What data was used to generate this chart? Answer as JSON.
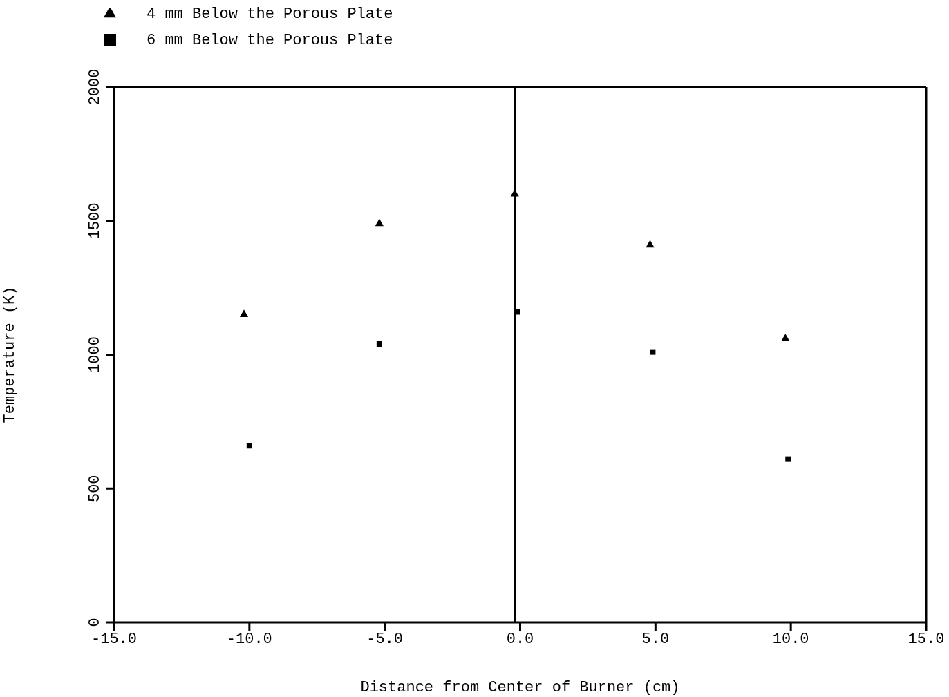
{
  "chart_data": {
    "type": "scatter",
    "xlabel": "Distance from Center of Burner  (cm)",
    "ylabel": "Temperature (K)",
    "xlim": [
      -15,
      15
    ],
    "xticks": [
      {
        "value": -15,
        "label": "-15.0"
      },
      {
        "value": -10,
        "label": "-10.0"
      },
      {
        "value": -5,
        "label": "-5.0"
      },
      {
        "value": 0,
        "label": "0.0"
      },
      {
        "value": 5,
        "label": "5.0"
      },
      {
        "value": 10,
        "label": "10.0"
      },
      {
        "value": 15,
        "label": "15.0"
      }
    ],
    "ylim": [
      0,
      2000
    ],
    "yticks": [
      0,
      500,
      1000,
      1500,
      2000
    ],
    "grid": false,
    "legend": "top left",
    "ref_lines": [
      {
        "axis": "x",
        "value": -0.2,
        "color": "#000000"
      }
    ],
    "series": [
      {
        "name": "4 mm Below the Porous Plate",
        "color": "#000000",
        "marker": "triangle",
        "x": [
          -10.2,
          -5.2,
          -0.2,
          4.8,
          9.8
        ],
        "values": [
          1150,
          1490,
          1600,
          1410,
          1060
        ]
      },
      {
        "name": "6 mm Below the Porous Plate",
        "color": "#000000",
        "marker": "square",
        "x": [
          -10.0,
          -5.2,
          -0.1,
          4.9,
          9.9
        ],
        "values": [
          660,
          1040,
          1160,
          1010,
          610
        ]
      }
    ]
  }
}
